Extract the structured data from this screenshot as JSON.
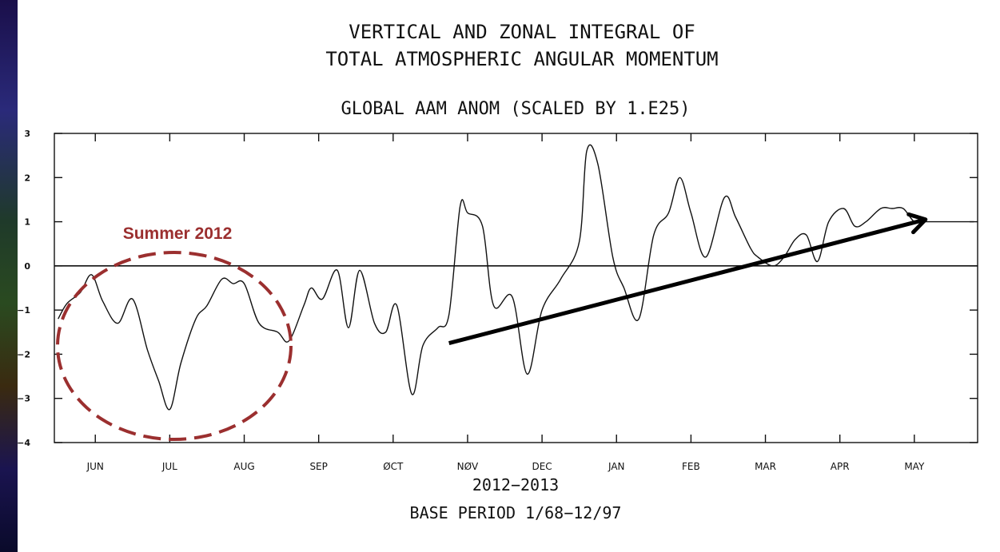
{
  "chart_data": {
    "type": "line",
    "title_line1": "VERTICAL AND ZONAL INTEGRAL OF",
    "title_line2": "TOTAL ATMOSPHERIC ANGULAR MOMENTUM",
    "subtitle": "GLOBAL AAM ANOM (SCALED BY 1.E25)",
    "xlabel": "2012−2013",
    "base_period": "BASE PERIOD  1/68−12/97",
    "ylim": [
      -4,
      3
    ],
    "yticks": [
      3,
      2,
      1,
      0,
      -1,
      -2,
      -3,
      -4
    ],
    "ytick_labels": [
      "3",
      "2",
      "1",
      "0",
      "−1",
      "−2",
      "−3",
      "−4"
    ],
    "x_range": [
      -0.55,
      11.85
    ],
    "month_labels": [
      "JUN",
      "JUL",
      "AUG",
      "SEP",
      "ØCT",
      "NØV",
      "DEC",
      "JAN",
      "FEB",
      "MAR",
      "APR",
      "MAY"
    ],
    "grid": false,
    "zero_line": true,
    "series": [
      {
        "x": [
          -0.5,
          -0.38,
          -0.2,
          -0.05,
          0.1,
          0.3,
          0.5,
          0.7,
          0.85,
          1.0,
          1.15,
          1.35,
          1.5,
          1.7,
          1.85,
          2.0,
          2.2,
          2.45,
          2.6,
          2.8,
          2.9,
          3.05,
          3.25,
          3.4,
          3.55,
          3.75,
          3.9,
          4.05,
          4.25,
          4.4,
          4.6,
          4.75,
          4.9,
          5.0,
          5.2,
          5.35,
          5.6,
          5.8,
          6.0,
          6.25,
          6.5,
          6.6,
          6.75,
          6.95,
          7.1,
          7.3,
          7.5,
          7.7,
          7.85,
          8.0,
          8.2,
          8.45,
          8.6,
          8.8,
          8.9,
          9.1,
          9.25,
          9.4,
          9.55,
          9.7,
          9.85,
          10.05,
          10.2,
          10.35,
          10.55,
          10.7,
          10.85,
          11.0,
          11.15,
          11.3,
          11.5,
          11.7,
          11.8
        ],
        "values": [
          -1.2,
          -0.85,
          -0.6,
          -0.2,
          -0.8,
          -1.3,
          -0.75,
          -1.9,
          -2.6,
          -3.25,
          -2.2,
          -1.2,
          -0.9,
          -0.3,
          -0.4,
          -0.4,
          -1.3,
          -1.5,
          -1.7,
          -0.9,
          -0.5,
          -0.75,
          -0.1,
          -1.4,
          -0.1,
          -1.3,
          -1.5,
          -0.9,
          -2.9,
          -1.8,
          -1.4,
          -1.1,
          1.35,
          1.2,
          0.9,
          -0.9,
          -0.7,
          -2.45,
          -1.0,
          -0.3,
          0.55,
          2.6,
          2.3,
          0.2,
          -0.5,
          -1.2,
          0.7,
          1.2,
          2.0,
          1.2,
          0.2,
          1.55,
          1.1,
          0.4,
          0.2,
          0.0,
          0.2,
          0.6,
          0.7,
          0.1,
          1.0,
          1.3,
          0.9,
          1.0,
          1.3,
          1.3,
          1.3,
          1.0,
          1.0,
          1.0,
          1.0,
          1.0,
          1.0
        ]
      }
    ],
    "annotations": {
      "summer_label": "Summer 2012",
      "summer_color": "#9b2f2f",
      "trend_arrow_color": "#000000",
      "trend_from": {
        "x": 4.75,
        "y": -1.75
      },
      "trend_to": {
        "x": 11.15,
        "y": 1.05
      }
    }
  }
}
